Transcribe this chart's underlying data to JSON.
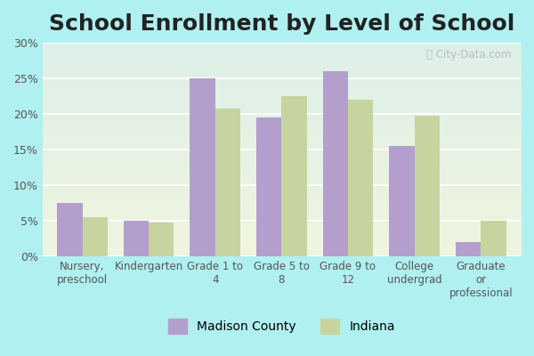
{
  "title": "School Enrollment by Level of School",
  "categories": [
    "Nursery,\npreschool",
    "Kindergarten",
    "Grade 1 to\n4",
    "Grade 5 to\n8",
    "Grade 9 to\n12",
    "College\nundergrad",
    "Graduate\nor\nprofessional"
  ],
  "madison_county": [
    7.5,
    5.0,
    25.0,
    19.5,
    26.0,
    15.5,
    2.0
  ],
  "indiana": [
    5.5,
    4.8,
    20.8,
    22.5,
    22.0,
    19.8,
    5.0
  ],
  "madison_color": "#b49fcc",
  "indiana_color": "#c8d4a0",
  "ylim": [
    0,
    30
  ],
  "yticks": [
    0,
    5,
    10,
    15,
    20,
    25,
    30
  ],
  "ytick_labels": [
    "0%",
    "5%",
    "10%",
    "15%",
    "20%",
    "25%",
    "30%"
  ],
  "legend_labels": [
    "Madison County",
    "Indiana"
  ],
  "outer_bg": "#b0f0f0",
  "bg_top": "#ddf0e8",
  "bg_bottom": "#f0f5e0",
  "title_fontsize": 18,
  "bar_width": 0.38
}
